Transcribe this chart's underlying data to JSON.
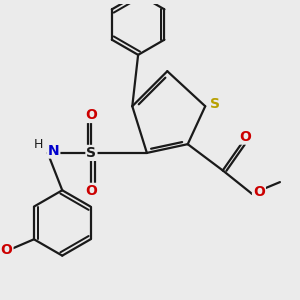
{
  "background_color": "#ebebeb",
  "bond_color": "#1a1a1a",
  "bond_width": 1.6,
  "S_thiophene_color": "#b8a000",
  "N_color": "#0000cc",
  "O_color": "#cc0000",
  "figsize": [
    3.0,
    3.0
  ],
  "dpi": 100,
  "xlim": [
    -2.5,
    2.5
  ],
  "ylim": [
    -2.8,
    2.2
  ]
}
